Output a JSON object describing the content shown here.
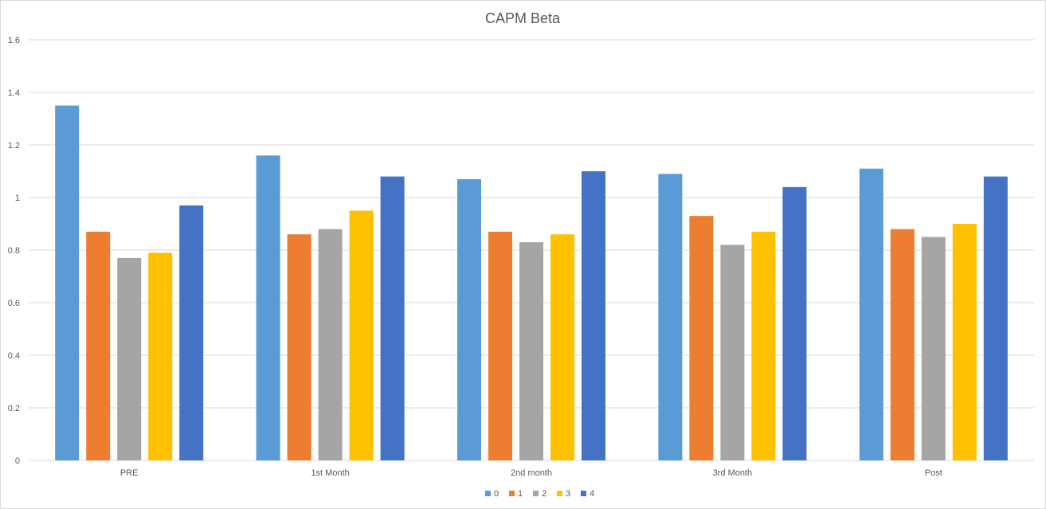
{
  "chart_data": {
    "type": "bar",
    "title": "CAPM Beta",
    "xlabel": "",
    "ylabel": "",
    "categories": [
      "PRE",
      "1st Month",
      "2nd month",
      "3rd Month",
      "Post"
    ],
    "series": [
      {
        "name": "0",
        "color": "#5b9bd5",
        "values": [
          1.35,
          1.16,
          1.07,
          1.09,
          1.11
        ]
      },
      {
        "name": "1",
        "color": "#ed7d31",
        "values": [
          0.87,
          0.86,
          0.87,
          0.93,
          0.88
        ]
      },
      {
        "name": "2",
        "color": "#a5a5a5",
        "values": [
          0.77,
          0.88,
          0.83,
          0.82,
          0.85
        ]
      },
      {
        "name": "3",
        "color": "#ffc000",
        "values": [
          0.79,
          0.95,
          0.86,
          0.87,
          0.9
        ]
      },
      {
        "name": "4",
        "color": "#4472c4",
        "values": [
          0.97,
          1.08,
          1.1,
          1.04,
          1.08
        ]
      }
    ],
    "ylim": [
      0,
      1.6
    ],
    "yticks": [
      "0",
      "0.2",
      "0.4",
      "0.6",
      "0.8",
      "1",
      "1.2",
      "1.4",
      "1.6"
    ],
    "grid": true,
    "legend_position": "bottom"
  },
  "colors": {
    "gridline": "#d9d9d9",
    "text": "#595959"
  }
}
